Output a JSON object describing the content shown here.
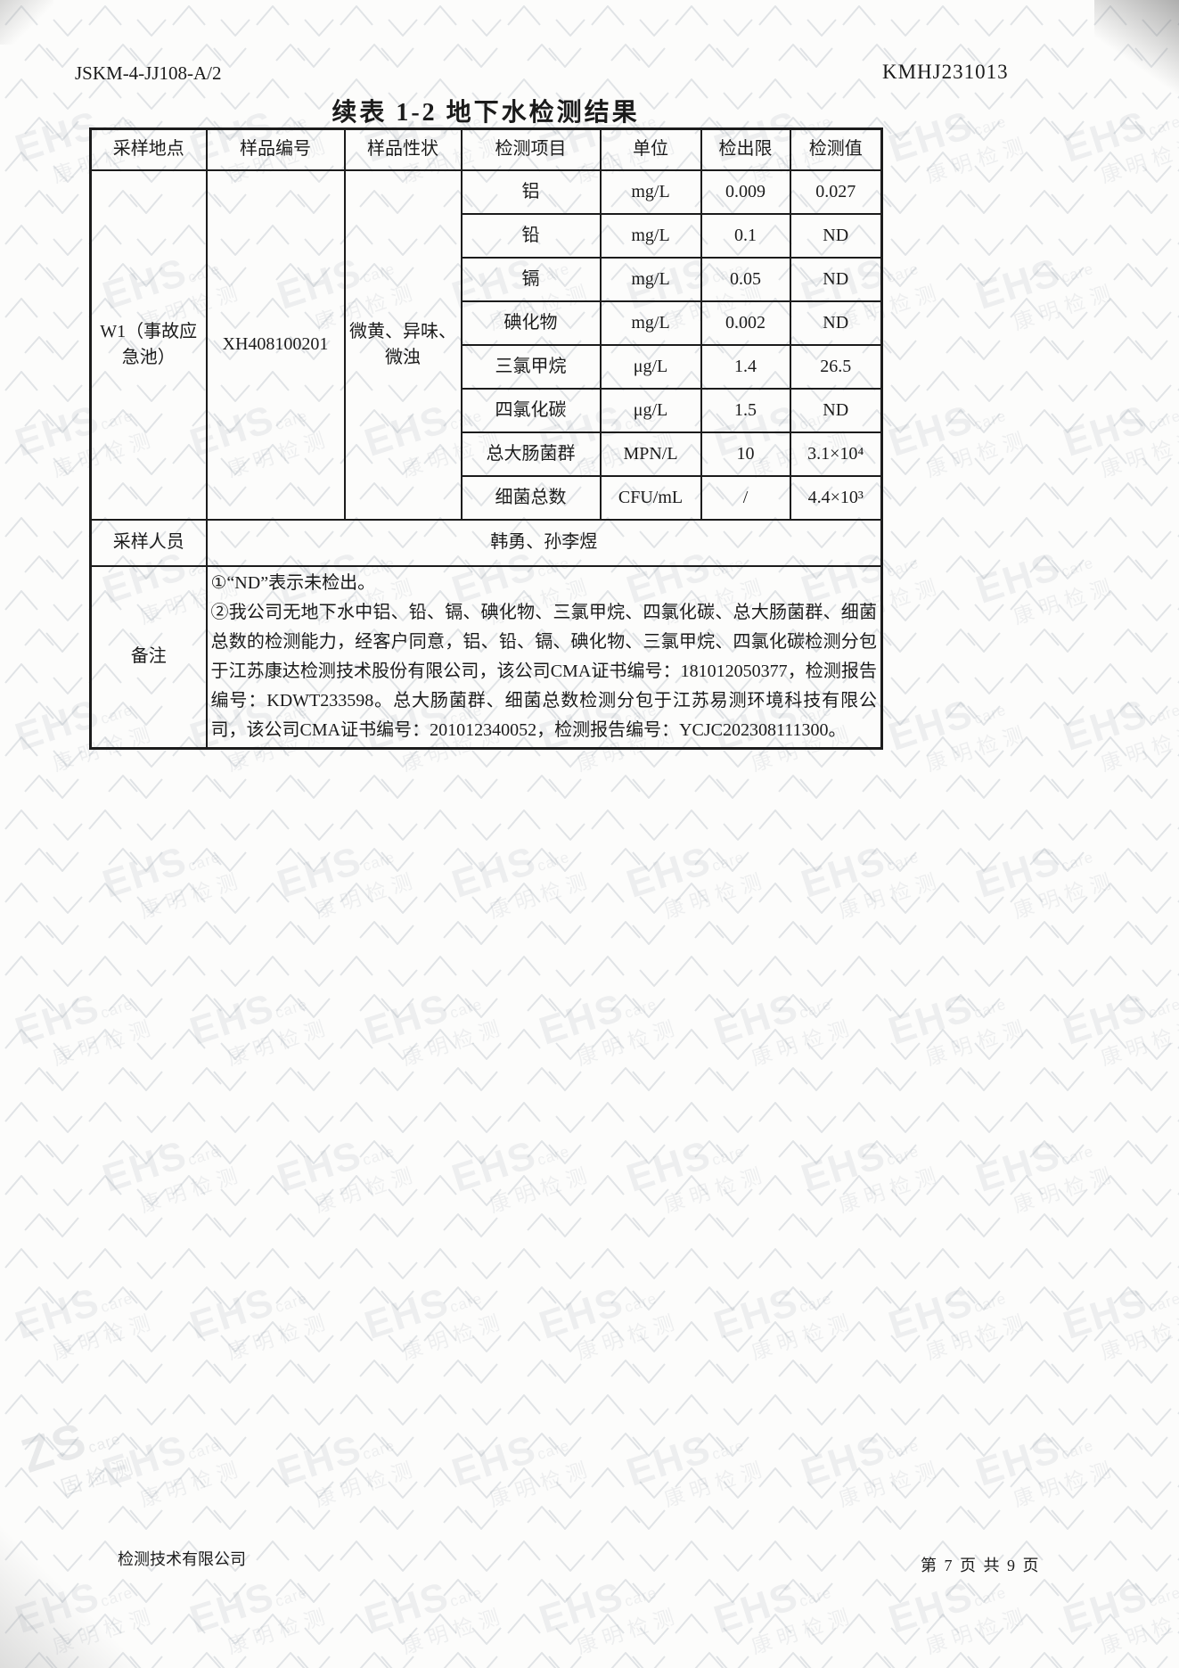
{
  "page": {
    "doc_code": "JSKM-4-JJ108-A/2",
    "report_no": "KMHJ231013",
    "title": "续表 1-2  地下水检测结果",
    "footer_left": "检测技术有限公司",
    "footer_right": "第 7 页 共 9 页"
  },
  "table": {
    "headers": [
      "采样地点",
      "样品编号",
      "样品性状",
      "检测项目",
      "单位",
      "检出限",
      "检测值"
    ],
    "sampling_location": "W1（事故应急池）",
    "sample_no": "XH408100201",
    "sample_character": "微黄、异味、微浊",
    "rows": [
      {
        "item": "铝",
        "unit": "mg/L",
        "limit": "0.009",
        "value": "0.027"
      },
      {
        "item": "铅",
        "unit": "mg/L",
        "limit": "0.1",
        "value": "ND"
      },
      {
        "item": "镉",
        "unit": "mg/L",
        "limit": "0.05",
        "value": "ND"
      },
      {
        "item": "碘化物",
        "unit": "mg/L",
        "limit": "0.002",
        "value": "ND"
      },
      {
        "item": "三氯甲烷",
        "unit": "μg/L",
        "limit": "1.4",
        "value": "26.5"
      },
      {
        "item": "四氯化碳",
        "unit": "μg/L",
        "limit": "1.5",
        "value": "ND"
      },
      {
        "item": "总大肠菌群",
        "unit": "MPN/L",
        "limit": "10",
        "value": "3.1×10⁴"
      },
      {
        "item": "细菌总数",
        "unit": "CFU/mL",
        "limit": "/",
        "value": "4.4×10³"
      }
    ],
    "personnel_label": "采样人员",
    "personnel": "韩勇、孙李煜",
    "remark_label": "备注",
    "remarks": [
      "①“ND”表示未检出。",
      "②我公司无地下水中铝、铅、镉、碘化物、三氯甲烷、四氯化碳、总大肠菌群、细菌总数的检测能力，经客户同意，铝、铅、镉、碘化物、三氯甲烷、四氯化碳检测分包于江苏康达检测技术股份有限公司，该公司CMA证书编号：181012050377，检测报告编号：KDWT233598。总大肠菌群、细菌总数检测分包于江苏易测环境科技有限公司，该公司CMA证书编号：201012340052，检测报告编号：YCJC202308111300。"
    ]
  },
  "watermark": {
    "brand": "EHS",
    "brand_suffix": "care",
    "brand_cn": "康明检测",
    "corner_brand": "ZS",
    "corner_suffix": "care",
    "corner_cn": "固检测"
  }
}
